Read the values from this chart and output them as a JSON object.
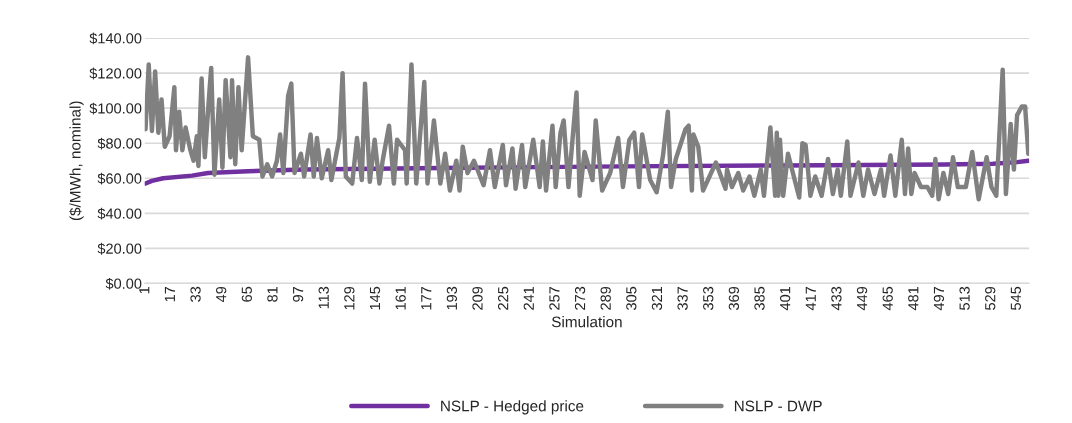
{
  "chart_data": {
    "type": "line",
    "xlabel": "Simulation",
    "ylabel": "($/MWh, nominal)",
    "xlim": [
      0.5,
      552.5
    ],
    "xticks": [
      1,
      17,
      33,
      49,
      65,
      81,
      97,
      113,
      129,
      145,
      161,
      177,
      193,
      209,
      225,
      241,
      257,
      273,
      289,
      305,
      321,
      337,
      353,
      369,
      385,
      401,
      417,
      433,
      449,
      465,
      481,
      497,
      513,
      529,
      545
    ],
    "ylim": [
      0,
      140
    ],
    "yticks": [
      {
        "value": 0,
        "label": "$0.00"
      },
      {
        "value": 20,
        "label": "$20.00"
      },
      {
        "value": 40,
        "label": "$40.00"
      },
      {
        "value": 60,
        "label": "$60.00"
      },
      {
        "value": 80,
        "label": "$80.00"
      },
      {
        "value": 100,
        "label": "$100.00"
      },
      {
        "value": 120,
        "label": "$120.00"
      },
      {
        "value": 140,
        "label": "$140.00"
      }
    ],
    "grid": "y",
    "legend": "bottom",
    "marker": "none",
    "line_style": "solid",
    "series": [
      {
        "name": "NSLP - Hedged price",
        "color": "#7030a0",
        "x": [
          1,
          5,
          12,
          30,
          40,
          65,
          100,
          200,
          300,
          400,
          500,
          530,
          545,
          552
        ],
        "values": [
          57,
          58.5,
          60,
          61.5,
          63,
          64,
          65,
          66,
          66.8,
          67.3,
          67.8,
          68.3,
          69.2,
          70
        ]
      },
      {
        "name": "NSLP - DWP",
        "color": "#808080",
        "x": [
          1,
          3,
          5,
          7,
          9,
          11,
          13,
          16,
          19,
          20,
          22,
          24,
          26,
          29,
          31,
          33,
          34,
          36,
          38,
          41,
          42,
          44,
          47,
          49,
          51,
          54,
          55,
          57,
          59,
          61,
          65,
          68,
          72,
          74,
          77,
          80,
          83,
          85,
          87,
          90,
          92,
          94,
          98,
          100,
          104,
          106,
          108,
          111,
          115,
          117,
          122,
          124,
          126,
          130,
          133,
          136,
          138,
          141,
          144,
          147,
          149,
          153,
          156,
          158,
          163,
          164,
          167,
          170,
          175,
          177,
          181,
          185,
          188,
          191,
          195,
          197,
          199,
          202,
          206,
          212,
          216,
          219,
          224,
          226,
          230,
          232,
          236,
          238,
          243,
          247,
          249,
          251,
          255,
          257,
          260,
          262,
          265,
          270,
          272,
          275,
          280,
          282,
          286,
          291,
          296,
          299,
          303,
          306,
          309,
          311,
          316,
          320,
          324,
          327,
          329,
          332,
          338,
          340,
          342,
          343,
          346,
          349,
          357,
          363,
          364,
          367,
          371,
          374,
          378,
          381,
          385,
          387,
          391,
          394,
          395,
          396,
          397,
          399,
          402,
          409,
          411,
          413,
          416,
          419,
          423,
          427,
          430,
          433,
          435,
          439,
          441,
          446,
          449,
          452,
          456,
          460,
          462,
          466,
          469,
          473,
          475,
          477,
          479,
          481,
          485,
          489,
          492,
          494,
          496,
          499,
          502,
          505,
          508,
          513,
          517,
          521,
          526,
          529,
          532,
          536,
          538,
          541,
          543,
          545,
          548,
          550,
          552
        ],
        "values": [
          88,
          125,
          87,
          121,
          86,
          105,
          78,
          84,
          112,
          76,
          98,
          76,
          89,
          76,
          70,
          84,
          67,
          117,
          72,
          111,
          123,
          62,
          105,
          66,
          116,
          72,
          116,
          68,
          112,
          76,
          129,
          84,
          82,
          61,
          68,
          61,
          70,
          85,
          63,
          107,
          114,
          63,
          74,
          61,
          85,
          61,
          83,
          60,
          76,
          59,
          83,
          120,
          61,
          57,
          83,
          59,
          114,
          58,
          82,
          57,
          70,
          90,
          57,
          82,
          76,
          57,
          125,
          57,
          115,
          57,
          93,
          57,
          74,
          53,
          70,
          53,
          78,
          63,
          70,
          56,
          76,
          55,
          79,
          56,
          77,
          54,
          79,
          55,
          82,
          55,
          81,
          53,
          90,
          55,
          86,
          93,
          55,
          109,
          50,
          75,
          59,
          93,
          53,
          63,
          83,
          55,
          82,
          86,
          55,
          85,
          59,
          52,
          73,
          98,
          55,
          71,
          88,
          90,
          53,
          85,
          78,
          53,
          69,
          54,
          65,
          55,
          63,
          53,
          61,
          50,
          65,
          50,
          89,
          50,
          86,
          50,
          82,
          50,
          74,
          49,
          80,
          79,
          50,
          61,
          50,
          71,
          51,
          65,
          50,
          81,
          50,
          69,
          50,
          65,
          51,
          65,
          50,
          73,
          50,
          82,
          51,
          77,
          51,
          63,
          55,
          55,
          50,
          71,
          48,
          63,
          51,
          72,
          55,
          55,
          75,
          48,
          72,
          55,
          50,
          122,
          51,
          91,
          65,
          96,
          101,
          101,
          74
        ]
      }
    ]
  }
}
